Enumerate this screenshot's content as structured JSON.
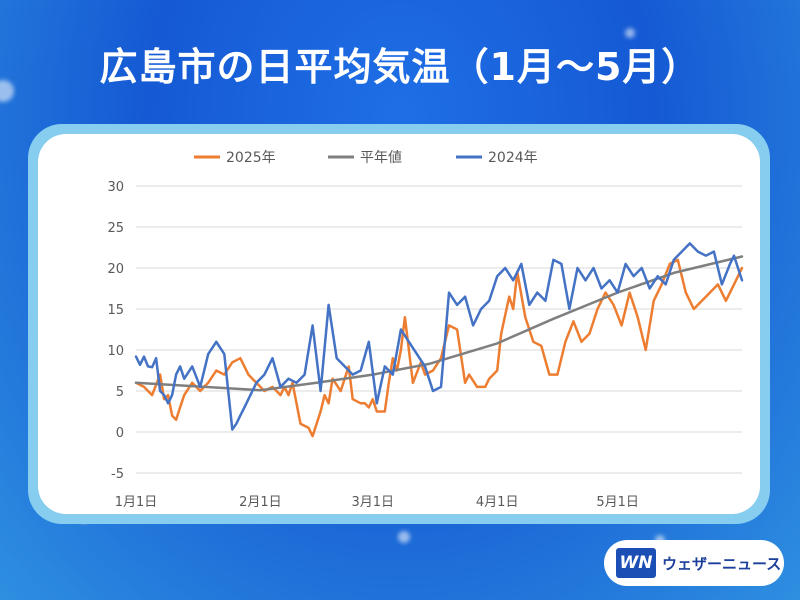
{
  "title": "広島市の日平均気温（1月〜5月）",
  "logo": {
    "mark": "WN",
    "text": "ウェザーニュース"
  },
  "colors": {
    "series_2025": "#ed7d31",
    "normal": "#7f7f7f",
    "series_2024": "#4472c4"
  },
  "chart_data": {
    "type": "line",
    "title": "",
    "xlabel": "",
    "ylabel": "",
    "ylim": [
      -5,
      30
    ],
    "yticks": [
      -5,
      0,
      5,
      10,
      15,
      20,
      25,
      30
    ],
    "x_range_days": [
      1,
      152
    ],
    "xticks": [
      {
        "day": 1,
        "label": "1月1日"
      },
      {
        "day": 32,
        "label": "2月1日"
      },
      {
        "day": 60,
        "label": "3月1日"
      },
      {
        "day": 91,
        "label": "4月1日"
      },
      {
        "day": 121,
        "label": "5月1日"
      }
    ],
    "grid": true,
    "legend_position": "top",
    "series": [
      {
        "name": "2025年",
        "color": "#ed7d31",
        "x": [
          1,
          3,
          5,
          7,
          8,
          9,
          10,
          11,
          12,
          13,
          15,
          17,
          19,
          21,
          23,
          25,
          27,
          29,
          31,
          32,
          33,
          35,
          36,
          37,
          38,
          39,
          40,
          42,
          44,
          45,
          47,
          48,
          49,
          50,
          52,
          54,
          55,
          57,
          58,
          59,
          60,
          61,
          63,
          64,
          65,
          66,
          67,
          68,
          70,
          72,
          73,
          75,
          77,
          78,
          79,
          81,
          83,
          84,
          86,
          88,
          89,
          91,
          92,
          94,
          95,
          96,
          98,
          100,
          102,
          104,
          106,
          108,
          110,
          112,
          114,
          116,
          118,
          120,
          122,
          124,
          126,
          128,
          130,
          132,
          134,
          136,
          138,
          140,
          142,
          143,
          144,
          146,
          148,
          150,
          152
        ],
        "y": [
          6,
          5.5,
          4.5,
          7,
          4,
          4.5,
          2,
          1.5,
          3,
          4.5,
          6,
          5,
          6,
          7.5,
          7,
          8.5,
          9,
          7,
          6,
          5.5,
          5,
          5.5,
          5,
          4.5,
          5.5,
          4.5,
          6,
          1,
          0.5,
          -0.5,
          2.5,
          4.5,
          3.5,
          6.5,
          5,
          8,
          4,
          3.5,
          3.5,
          3,
          4,
          2.5,
          2.5,
          6,
          9,
          7.5,
          10,
          14,
          6,
          8.5,
          7,
          7.5,
          9,
          11,
          13,
          12.5,
          6,
          7,
          5.5,
          5.5,
          6.5,
          7.5,
          12,
          16.5,
          15,
          19.5,
          14,
          11,
          10.5,
          7,
          7,
          11,
          13.5,
          11,
          12,
          15,
          17,
          15.5,
          13,
          17,
          14,
          10,
          16,
          18,
          20.5,
          21,
          17,
          15,
          16,
          16.5,
          17,
          18,
          16,
          18,
          20
        ]
      },
      {
        "name": "平年値",
        "color": "#7f7f7f",
        "x": [
          1,
          15,
          32,
          46,
          60,
          74,
          91,
          105,
          121,
          135,
          152
        ],
        "y": [
          6,
          5.6,
          5.1,
          6.0,
          7.0,
          8.3,
          10.8,
          13.8,
          17.0,
          19.4,
          21.4
        ]
      },
      {
        "name": "2024年",
        "color": "#4472c4",
        "x": [
          1,
          2,
          3,
          4,
          5,
          6,
          7,
          8,
          9,
          10,
          11,
          12,
          13,
          15,
          17,
          19,
          21,
          23,
          25,
          26,
          27,
          28,
          29,
          30,
          31,
          33,
          35,
          37,
          39,
          41,
          43,
          45,
          47,
          49,
          51,
          53,
          55,
          57,
          59,
          61,
          63,
          65,
          67,
          69,
          71,
          73,
          75,
          77,
          79,
          81,
          83,
          85,
          87,
          89,
          91,
          93,
          95,
          97,
          99,
          101,
          103,
          105,
          107,
          109,
          111,
          113,
          115,
          117,
          119,
          121,
          123,
          125,
          127,
          129,
          131,
          133,
          135,
          137,
          139,
          141,
          143,
          145,
          147,
          149,
          150,
          152
        ],
        "y": [
          9.2,
          8.2,
          9.2,
          8.0,
          7.9,
          9.0,
          5.0,
          4.5,
          3.5,
          4.5,
          7.0,
          8.0,
          6.5,
          8.0,
          5.5,
          9.5,
          11.0,
          9.5,
          0.3,
          1.0,
          2.0,
          3.0,
          4.0,
          5.0,
          6.0,
          7.0,
          9.0,
          5.5,
          6.5,
          6.0,
          7.0,
          13.0,
          5.0,
          15.5,
          9.0,
          8.0,
          7.0,
          7.5,
          11.0,
          3.5,
          8.0,
          7.0,
          12.5,
          11.0,
          9.5,
          8.0,
          5.0,
          5.5,
          17.0,
          15.5,
          16.5,
          13.0,
          15.0,
          16.0,
          19.0,
          20.0,
          18.5,
          20.5,
          15.5,
          17.0,
          16.0,
          21.0,
          20.5,
          15.0,
          20.0,
          18.5,
          20.0,
          17.5,
          18.5,
          17.0,
          20.5,
          19.0,
          20.0,
          17.5,
          19.0,
          18.0,
          21.0,
          22.0,
          23.0,
          22.0,
          21.5,
          22.0,
          18.0,
          20.5,
          21.5,
          18.5
        ]
      }
    ]
  }
}
